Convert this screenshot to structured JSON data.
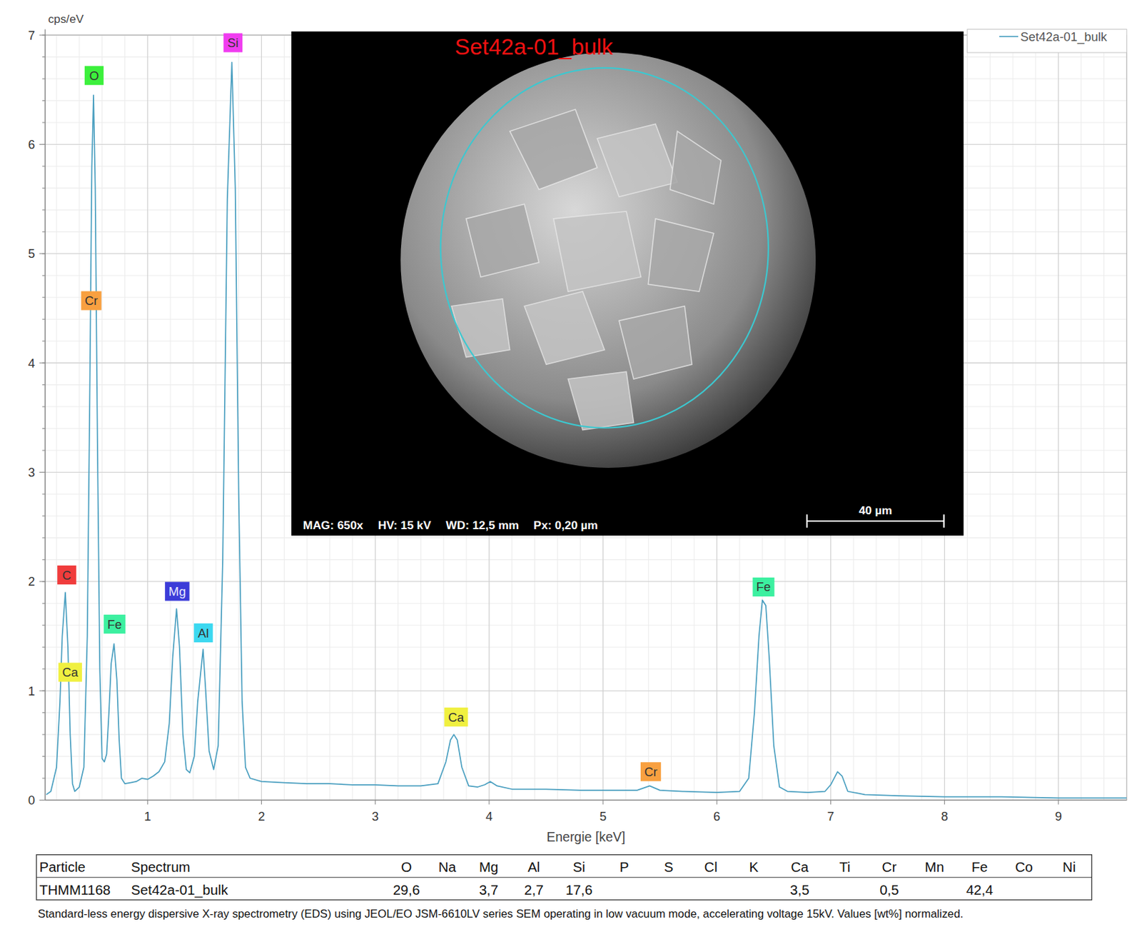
{
  "chart_data": {
    "type": "line",
    "y_label": "cps/eV",
    "x_label": "Energie [keV]",
    "xlim": [
      0.1,
      9.6
    ],
    "ylim": [
      0,
      7
    ],
    "xticks": [
      1,
      2,
      3,
      4,
      5,
      6,
      7,
      8,
      9
    ],
    "yticks": [
      0,
      1,
      2,
      3,
      4,
      5,
      6,
      7
    ],
    "grid": true,
    "legend": "upper right",
    "x": [
      0.11,
      0.15,
      0.2,
      0.23,
      0.25,
      0.277,
      0.3,
      0.32,
      0.34,
      0.36,
      0.4,
      0.44,
      0.47,
      0.49,
      0.51,
      0.525,
      0.54,
      0.56,
      0.58,
      0.6,
      0.62,
      0.64,
      0.66,
      0.68,
      0.705,
      0.73,
      0.75,
      0.77,
      0.8,
      0.85,
      0.9,
      0.95,
      1.0,
      1.05,
      1.1,
      1.15,
      1.19,
      1.22,
      1.254,
      1.28,
      1.31,
      1.34,
      1.37,
      1.41,
      1.44,
      1.487,
      1.51,
      1.54,
      1.58,
      1.62,
      1.66,
      1.7,
      1.74,
      1.77,
      1.8,
      1.83,
      1.86,
      1.9,
      2.0,
      2.2,
      2.4,
      2.6,
      2.8,
      3.0,
      3.2,
      3.4,
      3.55,
      3.62,
      3.66,
      3.69,
      3.72,
      3.76,
      3.82,
      3.9,
      3.96,
      4.01,
      4.07,
      4.2,
      4.5,
      4.8,
      5.1,
      5.3,
      5.41,
      5.5,
      5.7,
      6.0,
      6.2,
      6.28,
      6.33,
      6.37,
      6.4,
      6.43,
      6.46,
      6.5,
      6.55,
      6.62,
      6.8,
      6.95,
      7.0,
      7.06,
      7.1,
      7.15,
      7.3,
      7.6,
      8.0,
      8.5,
      9.0,
      9.6
    ],
    "series": [
      {
        "name": "Set42a-01_bulk",
        "color": "#4a9fc0",
        "values": [
          0.05,
          0.08,
          0.3,
          0.9,
          1.5,
          1.9,
          1.4,
          0.6,
          0.15,
          0.08,
          0.12,
          0.3,
          1.5,
          3.5,
          5.8,
          6.45,
          5.6,
          3.2,
          1.2,
          0.38,
          0.35,
          0.42,
          0.8,
          1.25,
          1.43,
          1.1,
          0.55,
          0.2,
          0.15,
          0.16,
          0.17,
          0.2,
          0.19,
          0.22,
          0.26,
          0.35,
          0.7,
          1.3,
          1.75,
          1.4,
          0.6,
          0.28,
          0.25,
          0.4,
          0.9,
          1.38,
          1.0,
          0.45,
          0.28,
          0.5,
          2.2,
          5.5,
          6.75,
          5.6,
          2.8,
          0.9,
          0.3,
          0.2,
          0.17,
          0.16,
          0.15,
          0.15,
          0.14,
          0.14,
          0.13,
          0.13,
          0.15,
          0.35,
          0.55,
          0.6,
          0.55,
          0.3,
          0.13,
          0.12,
          0.14,
          0.17,
          0.13,
          0.1,
          0.1,
          0.09,
          0.09,
          0.09,
          0.13,
          0.09,
          0.08,
          0.07,
          0.08,
          0.2,
          0.8,
          1.5,
          1.83,
          1.78,
          1.3,
          0.5,
          0.12,
          0.08,
          0.07,
          0.08,
          0.14,
          0.26,
          0.22,
          0.08,
          0.05,
          0.04,
          0.03,
          0.03,
          0.02,
          0.02
        ]
      }
    ],
    "annotations": [
      {
        "text": "O",
        "x": 0.53,
        "y": 6.63,
        "color": "#3cf03c"
      },
      {
        "text": "Si",
        "x": 1.75,
        "y": 6.93,
        "color": "#f03cf0"
      },
      {
        "text": "Cr",
        "x": 0.505,
        "y": 4.57,
        "color": "#f8a040"
      },
      {
        "text": "C",
        "x": 0.29,
        "y": 2.06,
        "color": "#f03c3c"
      },
      {
        "text": "Fe",
        "x": 0.71,
        "y": 1.61,
        "color": "#3cf0a0"
      },
      {
        "text": "Ca",
        "x": 0.32,
        "y": 1.17,
        "color": "#f0f040"
      },
      {
        "text": "Mg",
        "x": 1.26,
        "y": 1.91,
        "color": "#3c3cd8"
      },
      {
        "text": "Al",
        "x": 1.49,
        "y": 1.53,
        "color": "#3cd8f0"
      },
      {
        "text": "Ca",
        "x": 3.71,
        "y": 0.76,
        "color": "#f0f040"
      },
      {
        "text": "Cr",
        "x": 5.42,
        "y": 0.26,
        "color": "#f8a040"
      },
      {
        "text": "Fe",
        "x": 6.41,
        "y": 1.95,
        "color": "#3cf0a0"
      }
    ]
  },
  "inset": {
    "title": "Set42a-01_bulk",
    "info": [
      "MAG: 650x",
      "HV: 15 kV",
      "WD: 12,5 mm",
      "Px: 0,20 µm"
    ],
    "scale_bar": "40 µm"
  },
  "table": {
    "columns": [
      "Particle",
      "Spectrum",
      "O",
      "Na",
      "Mg",
      "Al",
      "Si",
      "P",
      "S",
      "Cl",
      "K",
      "Ca",
      "Ti",
      "Cr",
      "Mn",
      "Fe",
      "Co",
      "Ni"
    ],
    "rows": [
      [
        "THMM1168",
        "Set42a-01_bulk",
        "29,6",
        null,
        "3,7",
        "2,7",
        "17,6",
        null,
        null,
        null,
        null,
        "3,5",
        null,
        "0,5",
        null,
        "42,4",
        null,
        null
      ]
    ]
  },
  "footnote": "Standard-less energy dispersive X-ray spectrometry (EDS) using JEOL/EO JSM-6610LV series SEM operating in low vacuum mode, accelerating voltage 15kV. Values [wt%] normalized."
}
